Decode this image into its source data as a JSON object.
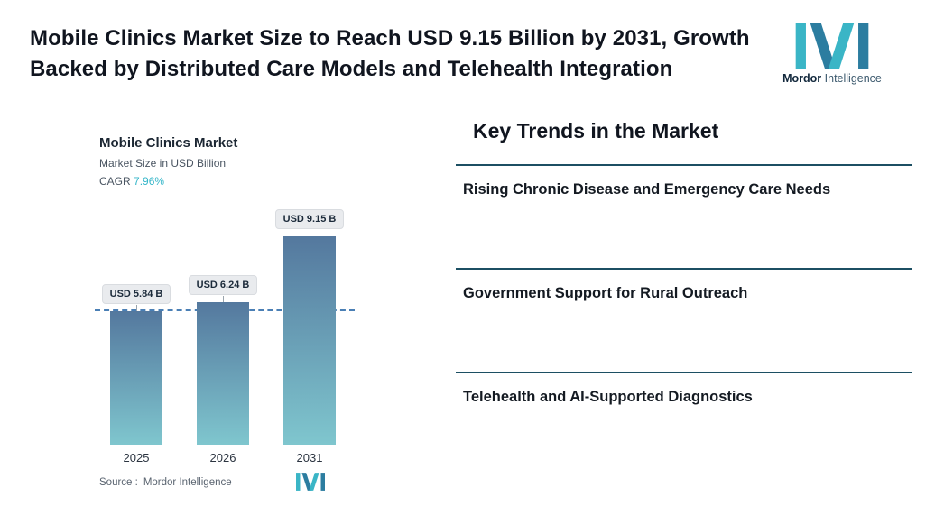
{
  "page": {
    "title": "Mobile Clinics Market Size to Reach USD 9.15 Billion by 2031, Growth Backed by Distributed Care Models and Telehealth Integration"
  },
  "brand": {
    "name": "Mordor",
    "suffix": "Intelligence"
  },
  "chart": {
    "title": "Mobile Clinics Market",
    "subtitle": "Market Size in USD Billion",
    "cagr_label": "CAGR ",
    "cagr_value": "7.96%",
    "source_label": "Source :",
    "source_value": "Mordor Intelligence"
  },
  "chart_data": {
    "type": "bar",
    "title": "Mobile Clinics Market",
    "subtitle": "Market Size in USD Billion",
    "cagr": "7.96%",
    "categories": [
      "2025",
      "2026",
      "2031"
    ],
    "values": [
      5.84,
      6.24,
      9.15
    ],
    "value_labels": [
      "USD 5.84 B",
      "USD 6.24 B",
      "USD 9.15 B"
    ],
    "unit": "USD Billion",
    "ylim": [
      0,
      10
    ],
    "reference_value": 5.84,
    "grid": "off",
    "legend": "none"
  },
  "trends": {
    "heading": "Key Trends in the Market",
    "items": [
      "Rising Chronic Disease and Emergency Care Needs",
      "Government Support for Rural Outreach",
      "Telehealth and AI-Supported Diagnostics"
    ]
  },
  "colors": {
    "accent_teal": "#35b6c9",
    "logo_blue": "#2c7da0",
    "bar_gradient_top": "#54789e",
    "bar_gradient_bottom": "#7fc6ce",
    "dashed_line": "#4a7fb5",
    "divider": "#1c4f63",
    "title_text": "#10151f"
  }
}
